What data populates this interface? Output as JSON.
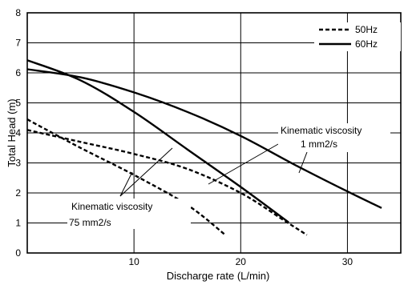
{
  "chart_data": {
    "type": "line",
    "title": "",
    "xlabel": "Discharge rate (L/min)",
    "ylabel": "Total Head (m)",
    "xlim": [
      0,
      35
    ],
    "ylim": [
      0,
      8
    ],
    "xticks": [
      10,
      20,
      30
    ],
    "yticks": [
      0,
      1,
      2,
      3,
      4,
      5,
      6,
      7,
      8
    ],
    "grid": true,
    "legend_position": "top-right",
    "legend": [
      {
        "label": "50Hz",
        "style": "dashed"
      },
      {
        "label": "60Hz",
        "style": "solid"
      }
    ],
    "series": [
      {
        "frequency": "50Hz",
        "viscosity": "1 mm2/s",
        "style": "dashed",
        "x": [
          0,
          5,
          10,
          15,
          20,
          24,
          26.2
        ],
        "y": [
          4.1,
          3.7,
          3.3,
          2.8,
          2.0,
          1.1,
          0.6
        ]
      },
      {
        "frequency": "50Hz",
        "viscosity": "75 mm2/s",
        "style": "dashed",
        "x": [
          0,
          5,
          10,
          15,
          18.5
        ],
        "y": [
          4.45,
          3.5,
          2.6,
          1.6,
          0.62
        ]
      },
      {
        "frequency": "60Hz",
        "viscosity": "1 mm2/s",
        "style": "solid",
        "x": [
          0,
          5,
          10,
          15,
          20,
          25,
          30,
          33.2
        ],
        "y": [
          6.12,
          5.85,
          5.35,
          4.7,
          3.9,
          2.95,
          2.05,
          1.5
        ]
      },
      {
        "frequency": "60Hz",
        "viscosity": "75 mm2/s",
        "style": "solid",
        "x": [
          0,
          5,
          10,
          15,
          20,
          24.5
        ],
        "y": [
          6.42,
          5.75,
          4.7,
          3.45,
          2.2,
          1.02
        ]
      }
    ],
    "annotations": [
      {
        "lines": [
          "Kinematic viscosity",
          "1 mm2/s"
        ]
      },
      {
        "lines": [
          "Kinematic viscosity",
          "75 mm2/s"
        ]
      }
    ]
  }
}
